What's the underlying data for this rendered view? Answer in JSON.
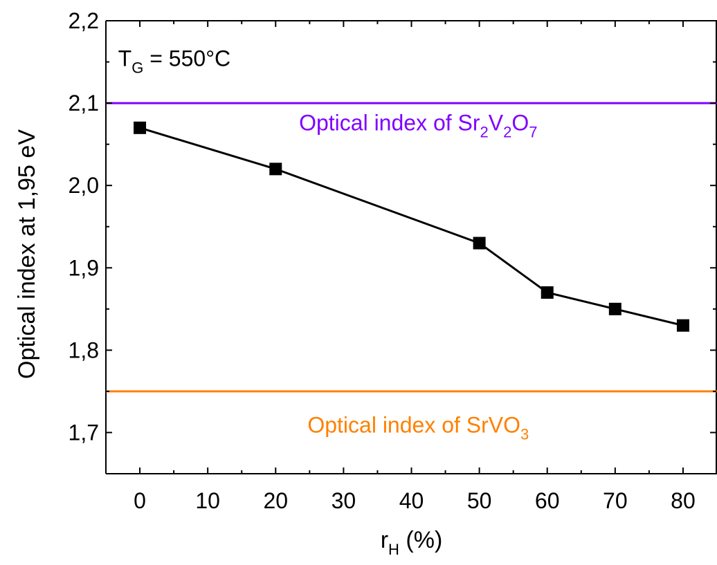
{
  "chart_data": {
    "type": "line",
    "xlabel": {
      "main": "r",
      "sub": "H",
      "tail": " (%)"
    },
    "ylabel": "Optical index at 1,95 eV",
    "xlim": [
      -5,
      85
    ],
    "ylim": [
      1.65,
      2.2
    ],
    "x_ticks": [
      0,
      10,
      20,
      30,
      40,
      50,
      60,
      70,
      80
    ],
    "y_ticks": [
      1.7,
      1.8,
      1.9,
      2.0,
      2.1,
      2.2
    ],
    "x_tick_labels": [
      "0",
      "10",
      "20",
      "30",
      "40",
      "50",
      "60",
      "70",
      "80"
    ],
    "y_tick_labels": [
      "1,7",
      "1,8",
      "1,9",
      "2,0",
      "2,1",
      "2,2"
    ],
    "grid": false,
    "series": [
      {
        "x": [
          0,
          20,
          50,
          60,
          70,
          80
        ],
        "y": [
          2.07,
          2.02,
          1.93,
          1.87,
          1.85,
          1.83
        ],
        "color": "#000000",
        "marker": "square"
      }
    ],
    "reference_lines": [
      {
        "y": 2.1,
        "color": "#8000ff",
        "label": [
          {
            "t": "Optical index of Sr",
            "sub": false
          },
          {
            "t": "2",
            "sub": true
          },
          {
            "t": "V",
            "sub": false
          },
          {
            "t": "2",
            "sub": true
          },
          {
            "t": "O",
            "sub": false
          },
          {
            "t": "7",
            "sub": true
          }
        ],
        "label_at": [
          41,
          2.067
        ]
      },
      {
        "y": 1.75,
        "color": "#ff8000",
        "label": [
          {
            "t": "Optical index of SrVO",
            "sub": false
          },
          {
            "t": "3",
            "sub": true
          }
        ],
        "label_at": [
          41,
          1.7
        ]
      }
    ],
    "annotations": [
      {
        "parts": [
          {
            "t": "T",
            "sub": false
          },
          {
            "t": "G",
            "sub": true
          },
          {
            "t": " = 550°C",
            "sub": false
          }
        ],
        "at": [
          -3.2,
          2.145
        ]
      }
    ]
  }
}
